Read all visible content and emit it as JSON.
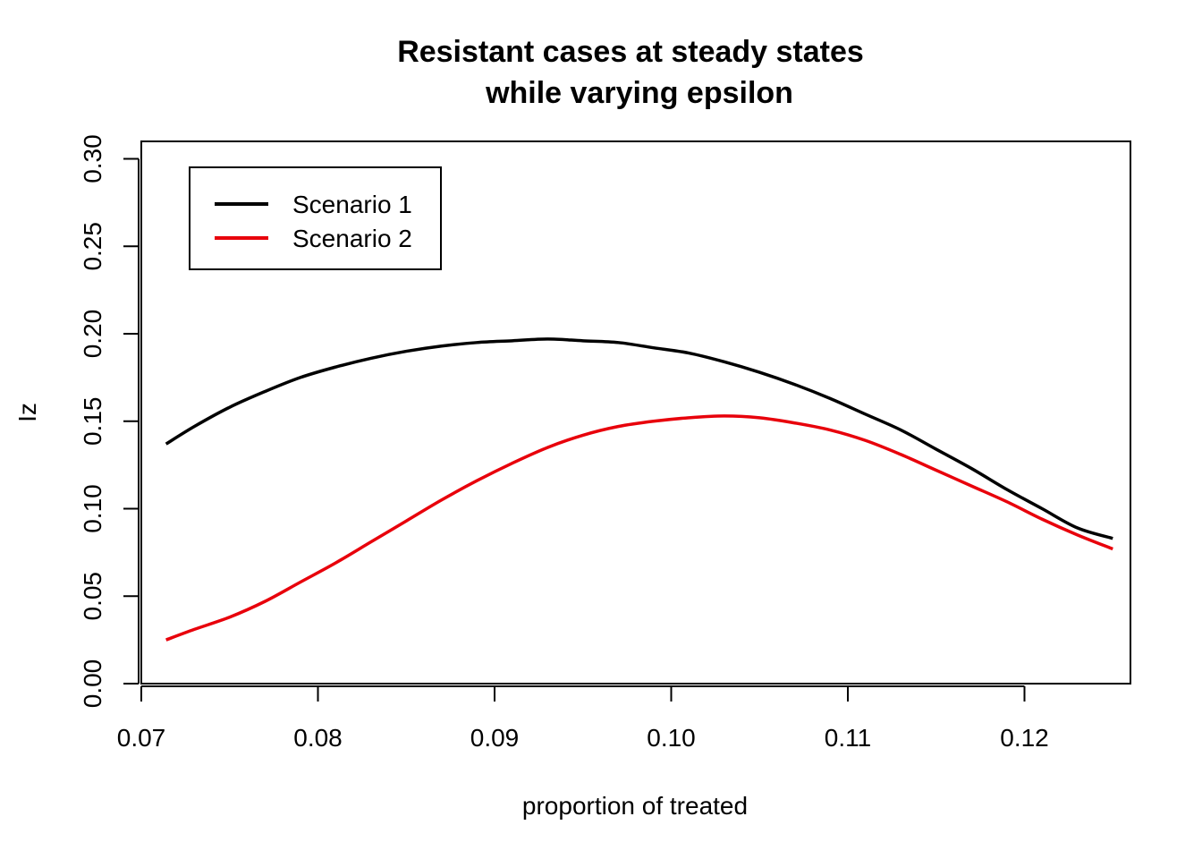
{
  "chart_data": {
    "type": "line",
    "title_line1": "Resistant cases at steady states",
    "title_line2": "while varying epsilon",
    "xlabel": "proportion of treated",
    "ylabel": "Iz",
    "xlim": [
      0.07,
      0.126
    ],
    "ylim": [
      0.0,
      0.31
    ],
    "xticks": [
      "0.07",
      "0.08",
      "0.09",
      "0.10",
      "0.11",
      "0.12"
    ],
    "yticks": [
      "0.00",
      "0.05",
      "0.10",
      "0.15",
      "0.20",
      "0.25",
      "0.30"
    ],
    "grid": false,
    "legend_position": "top-left",
    "series": [
      {
        "name": "Scenario 1",
        "color": "#000000",
        "x": [
          0.0714,
          0.073,
          0.075,
          0.077,
          0.079,
          0.081,
          0.083,
          0.085,
          0.087,
          0.089,
          0.091,
          0.093,
          0.095,
          0.097,
          0.099,
          0.101,
          0.103,
          0.105,
          0.107,
          0.109,
          0.111,
          0.113,
          0.115,
          0.117,
          0.119,
          0.121,
          0.123,
          0.125
        ],
        "y": [
          0.137,
          0.147,
          0.158,
          0.167,
          0.175,
          0.181,
          0.186,
          0.19,
          0.193,
          0.195,
          0.196,
          0.197,
          0.196,
          0.195,
          0.192,
          0.189,
          0.184,
          0.178,
          0.171,
          0.163,
          0.154,
          0.145,
          0.134,
          0.123,
          0.111,
          0.1,
          0.089,
          0.083
        ]
      },
      {
        "name": "Scenario 2",
        "color": "#e8000b",
        "x": [
          0.0714,
          0.073,
          0.075,
          0.077,
          0.079,
          0.081,
          0.083,
          0.085,
          0.087,
          0.089,
          0.091,
          0.093,
          0.095,
          0.097,
          0.099,
          0.101,
          0.103,
          0.105,
          0.107,
          0.109,
          0.111,
          0.113,
          0.115,
          0.117,
          0.119,
          0.121,
          0.123,
          0.125
        ],
        "y": [
          0.025,
          0.031,
          0.038,
          0.047,
          0.058,
          0.069,
          0.081,
          0.093,
          0.105,
          0.116,
          0.126,
          0.135,
          0.142,
          0.147,
          0.15,
          0.152,
          0.153,
          0.152,
          0.149,
          0.145,
          0.139,
          0.131,
          0.122,
          0.113,
          0.104,
          0.094,
          0.085,
          0.077
        ]
      }
    ]
  }
}
